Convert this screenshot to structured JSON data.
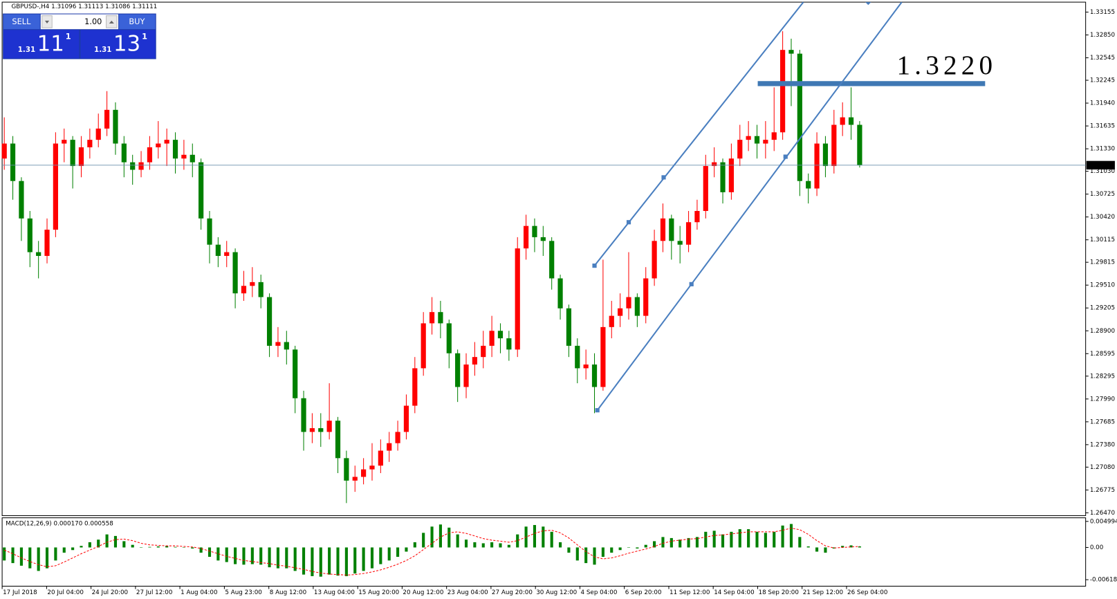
{
  "trade_panel": {
    "sell": "SELL",
    "buy": "BUY",
    "lots": "1.00",
    "sell_big": "1.31",
    "sell_pips": "11",
    "sell_frac": "1",
    "buy_big": "1.31",
    "buy_pips": "13",
    "buy_frac": "1"
  },
  "chart_data": [
    {
      "type": "candlestick",
      "title": "GBPUSD-,H4  1.31096 1.31113 1.31086 1.31111",
      "up_color": "#ff0000",
      "down_color": "#008000",
      "grid": false,
      "open": [
        1.312,
        1.314,
        1.309,
        1.304,
        1.2995,
        1.299,
        1.3025,
        1.314,
        1.3145,
        1.311,
        1.3135,
        1.3145,
        1.316,
        1.3185,
        1.314,
        1.3115,
        1.3105,
        1.3115,
        1.3135,
        1.314,
        1.3145,
        1.312,
        1.3125,
        1.3115,
        1.304,
        1.3005,
        1.299,
        1.2995,
        1.294,
        1.295,
        1.2955,
        1.2935,
        1.287,
        1.2875,
        1.2865,
        1.28,
        1.2755,
        1.276,
        1.2755,
        1.277,
        1.272,
        1.269,
        1.2695,
        1.2705,
        1.271,
        1.273,
        1.274,
        1.2755,
        1.279,
        1.284,
        1.29,
        1.2915,
        1.29,
        1.286,
        1.2815,
        1.2845,
        1.2855,
        1.287,
        1.289,
        1.288,
        1.2865,
        1.3,
        1.303,
        1.3015,
        1.301,
        1.296,
        1.292,
        1.287,
        1.284,
        1.2845,
        1.2815,
        1.2895,
        1.291,
        1.292,
        1.2935,
        1.291,
        1.296,
        1.301,
        1.304,
        1.301,
        1.3005,
        1.3035,
        1.305,
        1.311,
        1.3115,
        1.3075,
        1.312,
        1.3145,
        1.315,
        1.314,
        1.3145,
        1.3155,
        1.3265,
        1.326,
        1.309,
        1.308,
        1.314,
        1.311,
        1.3165,
        1.3175,
        1.3165
      ],
      "high": [
        1.3175,
        1.315,
        1.3095,
        1.305,
        1.301,
        1.304,
        1.3155,
        1.316,
        1.315,
        1.315,
        1.316,
        1.318,
        1.321,
        1.3195,
        1.315,
        1.3125,
        1.313,
        1.315,
        1.317,
        1.316,
        1.3155,
        1.3145,
        1.314,
        1.312,
        1.305,
        1.3015,
        1.301,
        1.3,
        1.297,
        1.2975,
        1.2965,
        1.294,
        1.2895,
        1.289,
        1.287,
        1.281,
        1.278,
        1.278,
        1.282,
        1.2775,
        1.273,
        1.271,
        1.272,
        1.274,
        1.2745,
        1.2755,
        1.277,
        1.2805,
        1.2855,
        1.2915,
        1.2935,
        1.293,
        1.2905,
        1.2865,
        1.286,
        1.2875,
        1.289,
        1.291,
        1.29,
        1.289,
        1.3015,
        1.3045,
        1.304,
        1.303,
        1.3015,
        1.2965,
        1.2925,
        1.288,
        1.2865,
        1.286,
        1.2985,
        1.293,
        1.294,
        1.2995,
        1.294,
        1.2975,
        1.3025,
        1.306,
        1.3045,
        1.303,
        1.305,
        1.3065,
        1.3125,
        1.3135,
        1.312,
        1.314,
        1.3165,
        1.317,
        1.3165,
        1.317,
        1.3215,
        1.329,
        1.328,
        1.3265,
        1.31,
        1.3155,
        1.315,
        1.3185,
        1.3195,
        1.3215,
        1.317
      ],
      "low": [
        1.3105,
        1.3065,
        1.301,
        1.2975,
        1.296,
        1.298,
        1.3015,
        1.3115,
        1.308,
        1.3095,
        1.312,
        1.3135,
        1.315,
        1.3125,
        1.3095,
        1.3085,
        1.3095,
        1.3105,
        1.312,
        1.311,
        1.31,
        1.3105,
        1.3095,
        1.3025,
        1.298,
        1.2975,
        1.2975,
        1.292,
        1.293,
        1.2935,
        1.292,
        1.2855,
        1.2855,
        1.2845,
        1.278,
        1.273,
        1.274,
        1.2735,
        1.2745,
        1.27,
        1.266,
        1.2675,
        1.2685,
        1.269,
        1.27,
        1.2715,
        1.273,
        1.2745,
        1.278,
        1.283,
        1.2885,
        1.288,
        1.284,
        1.2795,
        1.28,
        1.283,
        1.284,
        1.2855,
        1.286,
        1.285,
        1.2855,
        1.2985,
        1.2995,
        1.299,
        1.2945,
        1.2905,
        1.2855,
        1.282,
        1.2825,
        1.278,
        1.281,
        1.288,
        1.2895,
        1.2905,
        1.2895,
        1.29,
        1.295,
        1.2995,
        1.2985,
        1.298,
        1.2995,
        1.3025,
        1.304,
        1.3095,
        1.306,
        1.3065,
        1.311,
        1.313,
        1.312,
        1.312,
        1.313,
        1.3145,
        1.319,
        1.307,
        1.306,
        1.307,
        1.3095,
        1.31,
        1.315,
        1.3145,
        1.3108
      ],
      "close": [
        1.314,
        1.309,
        1.304,
        1.2995,
        1.299,
        1.3025,
        1.314,
        1.3145,
        1.311,
        1.3135,
        1.3145,
        1.316,
        1.3185,
        1.314,
        1.3115,
        1.3105,
        1.3115,
        1.3135,
        1.314,
        1.3145,
        1.312,
        1.3125,
        1.3115,
        1.304,
        1.3005,
        1.299,
        1.2995,
        1.294,
        1.295,
        1.2955,
        1.2935,
        1.287,
        1.2875,
        1.2865,
        1.28,
        1.2755,
        1.276,
        1.2755,
        1.277,
        1.272,
        1.269,
        1.2695,
        1.2705,
        1.271,
        1.273,
        1.274,
        1.2755,
        1.279,
        1.284,
        1.29,
        1.2915,
        1.29,
        1.286,
        1.2815,
        1.2845,
        1.2855,
        1.287,
        1.289,
        1.288,
        1.2865,
        1.3,
        1.303,
        1.3015,
        1.301,
        1.296,
        1.292,
        1.287,
        1.284,
        1.2845,
        1.2815,
        1.2895,
        1.291,
        1.292,
        1.2935,
        1.291,
        1.296,
        1.301,
        1.304,
        1.301,
        1.3005,
        1.3035,
        1.305,
        1.311,
        1.3115,
        1.3075,
        1.312,
        1.3145,
        1.315,
        1.314,
        1.3145,
        1.3155,
        1.3265,
        1.326,
        1.309,
        1.308,
        1.314,
        1.311,
        1.3165,
        1.3175,
        1.3165,
        1.3111
      ],
      "xlim": [
        -0.25,
        126.42
      ],
      "xticks": [
        {
          "value": -0.25,
          "label": "17 Jul 2018"
        },
        {
          "value": 4.95,
          "label": "20 Jul 04:00"
        },
        {
          "value": 10.14,
          "label": "24 Jul 20:00"
        },
        {
          "value": 15.34,
          "label": "27 Jul 12:00"
        },
        {
          "value": 20.53,
          "label": "1 Aug 04:00"
        },
        {
          "value": 25.73,
          "label": "5 Aug 23:00"
        },
        {
          "value": 30.93,
          "label": "8 Aug 12:00"
        },
        {
          "value": 36.12,
          "label": "13 Aug 04:00"
        },
        {
          "value": 41.32,
          "label": "15 Aug 20:00"
        },
        {
          "value": 46.51,
          "label": "20 Aug 12:00"
        },
        {
          "value": 51.71,
          "label": "23 Aug 04:00"
        },
        {
          "value": 56.9,
          "label": "27 Aug 20:00"
        },
        {
          "value": 62.1,
          "label": "30 Aug 12:00"
        },
        {
          "value": 67.3,
          "label": "4 Sep 04:00"
        },
        {
          "value": 72.49,
          "label": "6 Sep 20:00"
        },
        {
          "value": 77.69,
          "label": "11 Sep 12:00"
        },
        {
          "value": 82.88,
          "label": "14 Sep 04:00"
        },
        {
          "value": 88.08,
          "label": "18 Sep 20:00"
        },
        {
          "value": 93.27,
          "label": "21 Sep 12:00"
        },
        {
          "value": 98.47,
          "label": "26 Sep 04:00"
        }
      ],
      "ylim": [
        1.26432,
        1.33288
      ],
      "yticks": [
        1.33155,
        {
          "value": 1.3285,
          "label": "1.32850"
        },
        1.32545,
        1.32245,
        {
          "value": 1.3194,
          "label": "1.31940"
        },
        1.31635,
        {
          "value": 1.3133,
          "label": "1.31330"
        },
        {
          "value": 1.3103,
          "label": "1.31030"
        },
        1.30725,
        {
          "value": 1.3042,
          "label": "1.30420"
        },
        1.30115,
        1.29815,
        {
          "value": 1.2951,
          "label": "1.29510"
        },
        1.29205,
        {
          "value": 1.289,
          "label": "1.28900"
        },
        1.28595,
        1.28295,
        {
          "value": 1.2799,
          "label": "1.27990"
        },
        1.27685,
        {
          "value": 1.2738,
          "label": "1.27380"
        },
        {
          "value": 1.2708,
          "label": "1.27080"
        },
        1.26775,
        {
          "value": 1.2647,
          "label": "1.26470"
        }
      ],
      "current_price": 1.31111,
      "level": {
        "value": 1.322,
        "label": "1.3220",
        "color": "#3f78b4"
      }
    },
    {
      "type": "bar",
      "title": "MACD(12,26,9) 0.000170 0.000558",
      "ylim": [
        -0.007426,
        0.005684
      ],
      "yticks": [
        0.004994,
        {
          "value": 0,
          "label": "0.00"
        },
        -0.006184
      ],
      "series": [
        {
          "color": "#008000",
          "values": [
            -0.0025,
            -0.003,
            -0.0035,
            -0.004,
            -0.0045,
            -0.004,
            -0.0025,
            -0.001,
            -0.0005,
            0.0003,
            0.001,
            0.0015,
            0.0025,
            0.0022,
            0.0012,
            0.0005,
            0.0,
            0.0001,
            0.0002,
            0.0003,
            0.0001,
            0.0,
            -0.0002,
            -0.001,
            -0.0018,
            -0.0025,
            -0.0028,
            -0.0032,
            -0.0033,
            -0.0032,
            -0.0033,
            -0.0038,
            -0.004,
            -0.004,
            -0.0045,
            -0.0052,
            -0.0055,
            -0.0056,
            -0.0052,
            -0.0054,
            -0.0055,
            -0.005,
            -0.0045,
            -0.004,
            -0.0032,
            -0.0025,
            -0.0018,
            -0.0008,
            0.001,
            0.0028,
            0.004,
            0.0044,
            0.0038,
            0.0025,
            0.0015,
            0.001,
            0.0008,
            0.001,
            0.0008,
            0.0005,
            0.0025,
            0.004,
            0.0043,
            0.004,
            0.003,
            0.001,
            -0.001,
            -0.0025,
            -0.003,
            -0.0033,
            -0.0018,
            -0.001,
            -0.0005,
            0.0,
            -0.0002,
            0.0005,
            0.0012,
            0.002,
            0.0018,
            0.0015,
            0.0018,
            0.002,
            0.003,
            0.0032,
            0.0025,
            0.003,
            0.0035,
            0.0035,
            0.003,
            0.0028,
            0.003,
            0.0042,
            0.0045,
            0.002,
            0.0002,
            -0.0008,
            -0.001,
            -0.0002,
            0.0003,
            0.0004,
            0.0002
          ]
        },
        {
          "color": "#ff0000",
          "values": [
            -0.0005,
            -0.0012,
            -0.002,
            -0.0027,
            -0.0033,
            -0.0037,
            -0.0035,
            -0.0028,
            -0.002,
            -0.0012,
            -0.0005,
            0.0002,
            0.001,
            0.0015,
            0.0016,
            0.0013,
            0.0008,
            0.0005,
            0.0004,
            0.0003,
            0.0003,
            0.0002,
            0.0001,
            -0.0002,
            -0.0007,
            -0.0012,
            -0.0017,
            -0.0021,
            -0.0025,
            -0.0027,
            -0.0029,
            -0.0031,
            -0.0034,
            -0.0036,
            -0.0039,
            -0.0042,
            -0.0046,
            -0.0049,
            -0.0051,
            -0.0052,
            -0.0053,
            -0.0052,
            -0.005,
            -0.0047,
            -0.0043,
            -0.0038,
            -0.0032,
            -0.0025,
            -0.0016,
            -0.0004,
            0.0008,
            0.002,
            0.0028,
            0.003,
            0.0027,
            0.0022,
            0.0017,
            0.0014,
            0.0012,
            0.001,
            0.0013,
            0.002,
            0.0027,
            0.0032,
            0.0033,
            0.0028,
            0.0018,
            0.0005,
            -0.0008,
            -0.0018,
            -0.0022,
            -0.002,
            -0.0016,
            -0.0011,
            -0.0007,
            -0.0003,
            0.0002,
            0.0008,
            0.0012,
            0.0014,
            0.0016,
            0.0017,
            0.002,
            0.0023,
            0.0024,
            0.0026,
            0.0028,
            0.003,
            0.003,
            0.003,
            0.003,
            0.0033,
            0.0037,
            0.0034,
            0.0025,
            0.0013,
            0.0003,
            -0.0001,
            0.0,
            0.0001,
            0.0002
          ]
        }
      ]
    }
  ]
}
